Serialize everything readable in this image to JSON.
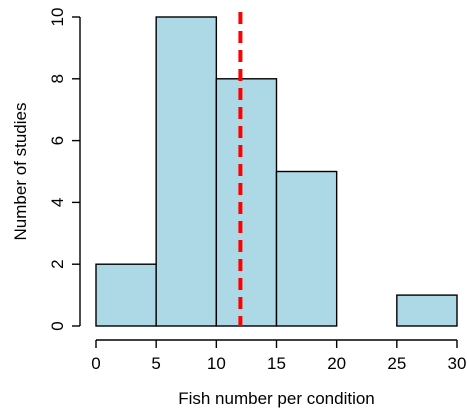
{
  "chart_data": {
    "type": "bar",
    "subtype": "histogram",
    "title": "",
    "xlabel": "Fish number per condition",
    "ylabel": "Number of studies",
    "bins": [
      {
        "x0": 0,
        "x1": 5,
        "count": 2
      },
      {
        "x0": 5,
        "x1": 10,
        "count": 10
      },
      {
        "x0": 10,
        "x1": 15,
        "count": 8
      },
      {
        "x0": 15,
        "x1": 20,
        "count": 5
      },
      {
        "x0": 20,
        "x1": 25,
        "count": 0
      },
      {
        "x0": 25,
        "x1": 30,
        "count": 1
      }
    ],
    "xlim": [
      0,
      30
    ],
    "ylim": [
      0,
      10
    ],
    "x_ticks": [
      "0",
      "5",
      "10",
      "15",
      "20",
      "25",
      "30"
    ],
    "y_ticks": [
      "0",
      "2",
      "4",
      "6",
      "8",
      "10"
    ],
    "reference_line": {
      "x": 12,
      "style": "dashed",
      "color": "#ff0000"
    },
    "bar_color": "#add8e6",
    "grid": false,
    "legend": "none"
  }
}
